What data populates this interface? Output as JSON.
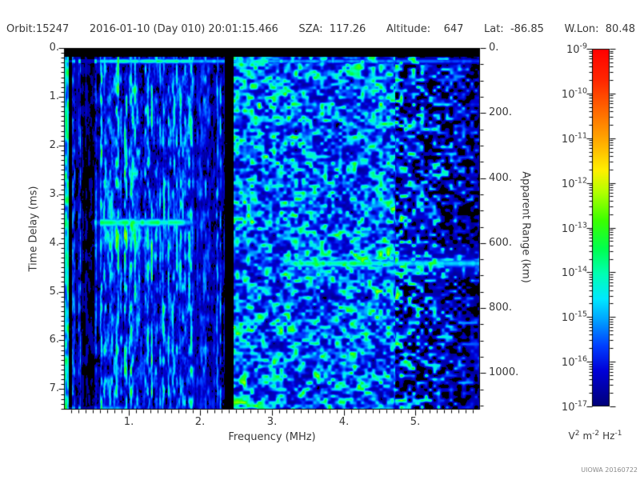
{
  "header": {
    "orbit": "Orbit:15247",
    "datetime": "2016-01-10 (Day 010) 20:01:15.466",
    "sza": "SZA:  117.26",
    "altitude": "Altitude:    647",
    "lat": "Lat:  -86.85",
    "wlon": "W.Lon:  80.48"
  },
  "footer": {
    "credit": "UIOWA 20160722"
  },
  "chart_data": {
    "type": "heatmap",
    "title": "",
    "xlabel": "Frequency (MHz)",
    "ylabel_left": "Time Delay (ms)",
    "ylabel_right": "Apparent Range (km)",
    "x_range_mhz": [
      0.1,
      5.9
    ],
    "x_major_ticks": [
      1,
      2,
      3,
      4,
      5
    ],
    "x_tick_labels": [
      "1.",
      "2.",
      "3.",
      "4.",
      "5."
    ],
    "x_minor_step_mhz": 0.1,
    "y_range_ms": [
      0,
      7.42
    ],
    "y_major_ticks_ms": [
      0,
      1,
      2,
      3,
      4,
      5,
      6,
      7
    ],
    "y_tick_labels": [
      "0.",
      "1.",
      "2.",
      "3.",
      "4.",
      "5.",
      "6.",
      "7."
    ],
    "y_minor_step_ms": 0.1,
    "right_major_ticks_km": [
      0,
      200,
      400,
      600,
      800,
      1000
    ],
    "right_tick_labels": [
      "0.",
      "200.",
      "400.",
      "600.",
      "800.",
      "1000."
    ],
    "right_minor_step_km": 50,
    "km_per_ms": 149.9,
    "grid": false,
    "colorbar": {
      "scale": "log",
      "exponent_max": -9,
      "exponent_min": -17,
      "tick_exponents": [
        -9,
        -10,
        -11,
        -12,
        -13,
        -14,
        -15,
        -16,
        -17
      ],
      "units": [
        {
          "base": "V",
          "sup": "2"
        },
        {
          "base": "m",
          "sup": "-2"
        },
        {
          "base": "Hz",
          "sup": "-1"
        }
      ],
      "gradient_stops": [
        [
          0.0,
          "#000078"
        ],
        [
          0.1,
          "#0000d8"
        ],
        [
          0.17,
          "#0040ff"
        ],
        [
          0.24,
          "#00a0ff"
        ],
        [
          0.3,
          "#00e8ff"
        ],
        [
          0.37,
          "#00ffb4"
        ],
        [
          0.44,
          "#00ff50"
        ],
        [
          0.52,
          "#3cff00"
        ],
        [
          0.6,
          "#b4ff00"
        ],
        [
          0.66,
          "#fff000"
        ],
        [
          0.73,
          "#ffb400"
        ],
        [
          0.82,
          "#ff6e00"
        ],
        [
          0.91,
          "#ff2800"
        ],
        [
          1.0,
          "#ff0000"
        ]
      ]
    },
    "texture_regions": [
      {
        "f_mhz": [
          0.1,
          2.34
        ],
        "style": "vertical-streaks"
      },
      {
        "f_mhz": [
          2.34,
          4.72
        ],
        "style": "blobs"
      },
      {
        "f_mhz": [
          4.72,
          5.9
        ],
        "style": "sparse-blobs"
      }
    ],
    "features": [
      {
        "name": "transmit-blank-band",
        "kind": "blank",
        "t_ms": [
          0.0,
          0.185
        ]
      },
      {
        "name": "first-arrival-line",
        "kind": "line",
        "t_ms": 0.272,
        "sigma_ms": 0.05,
        "amp_vs_f": [
          [
            0.1,
            0.9
          ],
          [
            2.3,
            0.95
          ],
          [
            2.5,
            0.6
          ],
          [
            4.7,
            0.55
          ],
          [
            5.9,
            0.42
          ]
        ]
      },
      {
        "name": "ionosphere-echo",
        "kind": "echo",
        "t_ms": 3.58,
        "sigma_ms": 0.085,
        "amp_vs_f": [
          [
            0.42,
            0.0
          ],
          [
            0.55,
            0.9
          ],
          [
            1.65,
            0.95
          ],
          [
            2.15,
            0.0
          ]
        ]
      },
      {
        "name": "ionosphere-echo-diffuse",
        "kind": "echo",
        "t_ms": 3.9,
        "sigma_ms": 0.26,
        "amp_vs_f": [
          [
            0.45,
            0.0
          ],
          [
            0.6,
            0.33
          ],
          [
            1.3,
            0.3
          ],
          [
            1.6,
            0.0
          ]
        ]
      },
      {
        "name": "ground-echo",
        "kind": "echo",
        "t_ms": 4.42,
        "sigma_ms": 0.075,
        "amp_vs_f": [
          [
            3.02,
            0.0
          ],
          [
            3.3,
            0.85
          ],
          [
            4.35,
            0.85
          ],
          [
            4.6,
            0.62
          ],
          [
            5.9,
            0.55
          ]
        ]
      },
      {
        "name": "ground-echo-diffuse",
        "kind": "echo",
        "t_ms": 4.42,
        "sigma_ms": 0.24,
        "amp_vs_f": [
          [
            3.1,
            0.0
          ],
          [
            3.5,
            0.16
          ],
          [
            5.9,
            0.15
          ]
        ]
      },
      {
        "name": "bottom-left-bright-edge",
        "kind": "echo",
        "t_ms": 7.42,
        "sigma_ms": 0.1,
        "amp_vs_f": [
          [
            0.1,
            0.7
          ],
          [
            0.85,
            0.6
          ],
          [
            1.05,
            0.0
          ]
        ]
      },
      {
        "name": "interference-null-band",
        "kind": "dark-band",
        "f_mhz": [
          2.34,
          2.47
        ],
        "strength": 0.05
      },
      {
        "name": "dark-stripe-a",
        "kind": "dark-band",
        "f_mhz": [
          0.165,
          0.21
        ],
        "strength": 0.12
      },
      {
        "name": "dark-stripe-b",
        "kind": "dark-band",
        "f_mhz": [
          0.26,
          0.3
        ],
        "strength": 0.3
      },
      {
        "name": "dark-stripe-c",
        "kind": "dark-band",
        "f_mhz": [
          0.33,
          0.52
        ],
        "strength": 0.18
      },
      {
        "name": "dark-stripe-d",
        "kind": "dark-band",
        "f_mhz": [
          0.56,
          0.6
        ],
        "strength": 0.5
      },
      {
        "name": "dim-band-pre-null",
        "kind": "dark-band",
        "f_mhz": [
          1.9,
          2.34
        ],
        "strength": 0.7
      }
    ],
    "noise_seed": 20160722
  }
}
